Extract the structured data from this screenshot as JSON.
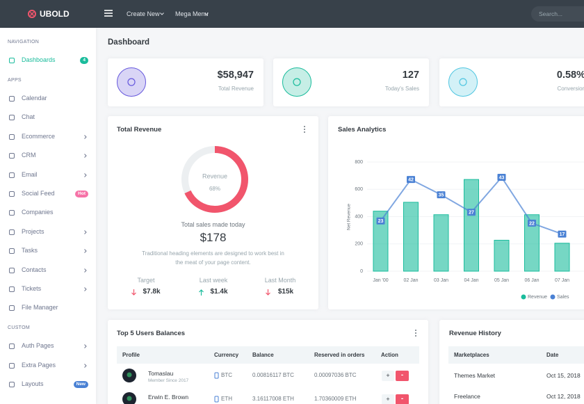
{
  "topbar": {
    "brand": "UBOLD",
    "menu": [
      "Create New",
      "Mega Menu"
    ],
    "search_placeholder": "Search..."
  },
  "sidebar": {
    "sections": [
      {
        "title": "NAVIGATION",
        "items": [
          {
            "label": "Dashboards",
            "badge": "4",
            "badge_color": "#1abc9c",
            "active": true
          }
        ]
      },
      {
        "title": "APPS",
        "items": [
          {
            "label": "Calendar"
          },
          {
            "label": "Chat"
          },
          {
            "label": "Ecommerce",
            "has_children": true
          },
          {
            "label": "CRM",
            "has_children": true
          },
          {
            "label": "Email",
            "has_children": true
          },
          {
            "label": "Social Feed",
            "badge": "Hot",
            "badge_color": "#f672a7"
          },
          {
            "label": "Companies"
          },
          {
            "label": "Projects",
            "has_children": true
          },
          {
            "label": "Tasks",
            "has_children": true
          },
          {
            "label": "Contacts",
            "has_children": true
          },
          {
            "label": "Tickets",
            "has_children": true
          },
          {
            "label": "File Manager"
          }
        ]
      },
      {
        "title": "CUSTOM",
        "items": [
          {
            "label": "Auth Pages",
            "has_children": true
          },
          {
            "label": "Extra Pages",
            "has_children": true
          },
          {
            "label": "Layouts",
            "badge": "New",
            "badge_color": "#4a81d4"
          }
        ]
      }
    ]
  },
  "page_title": "Dashboard",
  "stats": [
    {
      "value": "$58,947",
      "label": "Total Revenue",
      "color": "#6658dd"
    },
    {
      "value": "127",
      "label": "Today's Sales",
      "color": "#1abc9c"
    },
    {
      "value": "0.58%",
      "label": "Conversion",
      "color": "#4fc6e1"
    }
  ],
  "total_revenue": {
    "title": "Total Revenue",
    "donut": {
      "label": "Revenue",
      "value": 68,
      "value_label": "68%",
      "color": "#f1556c"
    },
    "subtitle": "Total sales made today",
    "amount": "$178",
    "description": "Traditional heading elements are designed to work best in the meat of your page content.",
    "metrics": [
      {
        "label": "Target",
        "value": "$7.8k",
        "trend": "down"
      },
      {
        "label": "Last week",
        "value": "$1.4k",
        "trend": "up"
      },
      {
        "label": "Last Month",
        "value": "$15k",
        "trend": "down"
      }
    ]
  },
  "sales_analytics": {
    "title": "Sales Analytics",
    "y_axis_label": "Net Revenue",
    "categories": [
      "Jan '00",
      "02 Jan",
      "03 Jan",
      "04 Jan",
      "05 Jan",
      "06 Jan",
      "07 Jan"
    ],
    "ylim": [
      0,
      800
    ],
    "yticks": [
      0,
      200,
      400,
      600,
      800
    ],
    "y2lim": [
      0,
      50
    ],
    "grid": true,
    "series": [
      {
        "name": "Revenue",
        "color": "#1abc9c",
        "values": [
          440,
          505,
          414,
          672,
          227,
          414,
          205
        ]
      },
      {
        "name": "Sales",
        "color": "#4a81d4",
        "axis": "y2",
        "values": [
          23,
          42,
          35,
          27,
          43,
          22,
          17
        ]
      }
    ]
  },
  "balances": {
    "title": "Top 5 Users Balances",
    "columns": [
      "Profile",
      "Currency",
      "Balance",
      "Reserved in orders",
      "Action"
    ],
    "action_labels": [
      "+",
      "-"
    ],
    "rows": [
      {
        "name": "Tomaslau",
        "since": "Member Since 2017",
        "currency": "BTC",
        "balance": "0.00816117 BTC",
        "reserved": "0.00097036 BTC"
      },
      {
        "name": "Erwin E. Brown",
        "currency": "ETH",
        "balance": "3.16117008 ETH",
        "reserved": "1.70360009 ETH"
      }
    ]
  },
  "revenue_history": {
    "title": "Revenue History",
    "columns": [
      "Marketplaces",
      "Date"
    ],
    "rows": [
      [
        "Themes Market",
        "Oct 15, 2018"
      ],
      [
        "Freelance",
        "Oct 12, 2018"
      ]
    ]
  }
}
